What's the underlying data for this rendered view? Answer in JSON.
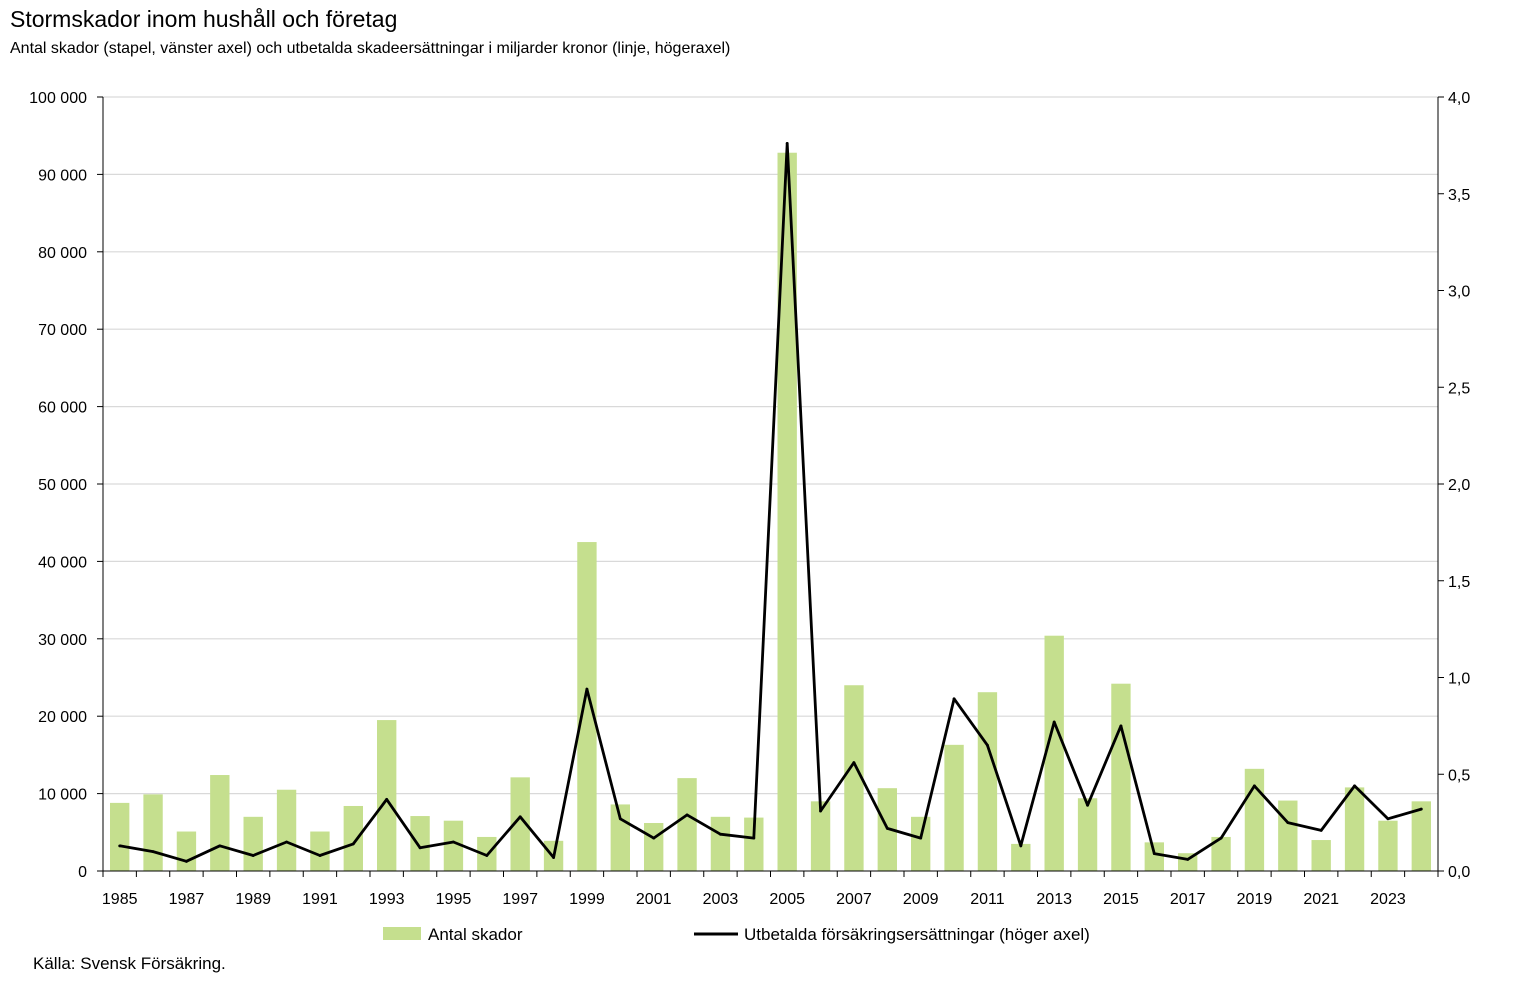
{
  "title": "Stormskador inom hushåll och företag",
  "subtitle": "Antal skador (stapel, vänster axel) och utbetalda skadeersättningar i miljarder kronor (linje, högeraxel)",
  "source": "Källa: Svensk Försäkring.",
  "colors": {
    "bar": "#c5df8e",
    "line": "#000000",
    "grid": "#d9d9d9"
  },
  "chart_data": {
    "type": "bar+line",
    "categories": [
      "1985",
      "1986",
      "1987",
      "1988",
      "1989",
      "1990",
      "1991",
      "1992",
      "1993",
      "1994",
      "1995",
      "1996",
      "1997",
      "1998",
      "1999",
      "2000",
      "2001",
      "2002",
      "2003",
      "2004",
      "2005",
      "2006",
      "2007",
      "2008",
      "2009",
      "2010",
      "2011",
      "2012",
      "2013",
      "2014",
      "2015",
      "2016",
      "2017",
      "2018",
      "2019",
      "2020",
      "2021",
      "2022",
      "2023",
      "2024"
    ],
    "x_tick_labels": [
      "1985",
      "1987",
      "1989",
      "1991",
      "1993",
      "1995",
      "1997",
      "1999",
      "2001",
      "2003",
      "2005",
      "2007",
      "2009",
      "2011",
      "2013",
      "2015",
      "2017",
      "2019",
      "2021",
      "2023"
    ],
    "y_left": {
      "min": 0,
      "max": 100000,
      "ticks": [
        "0",
        "10 000",
        "20 000",
        "30 000",
        "40 000",
        "50 000",
        "60 000",
        "70 000",
        "80 000",
        "90 000",
        "100 000"
      ]
    },
    "y_right": {
      "min": 0,
      "max": 4.0,
      "ticks": [
        "0,0",
        "0,5",
        "1,0",
        "1,5",
        "2,0",
        "2,5",
        "3,0",
        "3,5",
        "4,0"
      ]
    },
    "series": [
      {
        "name": "Antal skador",
        "type": "bar",
        "axis": "left",
        "values": [
          8800,
          9900,
          5100,
          12400,
          7000,
          10500,
          5100,
          8400,
          19500,
          7100,
          6500,
          4400,
          12100,
          3900,
          42500,
          8600,
          6200,
          12000,
          7000,
          6900,
          92800,
          9000,
          24000,
          10700,
          7000,
          16300,
          23100,
          3500,
          30400,
          9400,
          24200,
          3700,
          2300,
          4400,
          13200,
          9100,
          4000,
          10800,
          6500,
          9000
        ]
      },
      {
        "name": "Utbetalda försäkringsersättningar (höger axel)",
        "type": "line",
        "axis": "right",
        "values": [
          0.13,
          0.1,
          0.05,
          0.13,
          0.08,
          0.15,
          0.08,
          0.14,
          0.37,
          0.12,
          0.15,
          0.08,
          0.28,
          0.07,
          0.94,
          0.27,
          0.17,
          0.29,
          0.19,
          0.17,
          3.76,
          0.31,
          0.56,
          0.22,
          0.17,
          0.89,
          0.65,
          0.13,
          0.77,
          0.34,
          0.75,
          0.09,
          0.06,
          0.17,
          0.44,
          0.25,
          0.21,
          0.44,
          0.27,
          0.32
        ]
      }
    ],
    "grid": true,
    "legend": "bottom"
  }
}
